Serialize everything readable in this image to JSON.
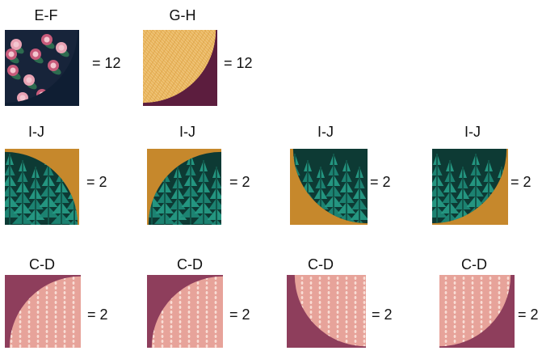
{
  "swatches": {
    "navy_floral": "#0f1e33",
    "rose": "#c75a7a",
    "green_leaf": "#2d6b4f",
    "gold": "#e8b45a",
    "plum": "#5c1d3e",
    "mustard": "#c6882c",
    "forest_dark": "#0d3a34",
    "teal_tree": "#1e8b78",
    "mauve": "#8e3e5c",
    "pink": "#e7a39a",
    "dots": "#fbe3dc"
  },
  "rows": [
    {
      "name": "row-1",
      "blocks": [
        {
          "label": "E-F",
          "count": "= 12",
          "fabric": "floral",
          "corner": "tl"
        },
        {
          "label": "G-H",
          "count": "= 12",
          "fabric": "gold",
          "corner": "tl"
        }
      ]
    },
    {
      "name": "row-2",
      "blocks": [
        {
          "label": "I-J",
          "count": "= 2",
          "fabric": "trees",
          "corner": "bl"
        },
        {
          "label": "I-J",
          "count": "= 2",
          "fabric": "trees",
          "corner": "br"
        },
        {
          "label": "I-J",
          "count": "= 2",
          "fabric": "trees",
          "corner": "tr"
        },
        {
          "label": "I-J",
          "count": "= 2",
          "fabric": "trees",
          "corner": "tl"
        }
      ]
    },
    {
      "name": "row-3",
      "blocks": [
        {
          "label": "C-D",
          "count": "= 2",
          "fabric": "dots",
          "corner": "br"
        },
        {
          "label": "C-D",
          "count": "= 2",
          "fabric": "dots",
          "corner": "br"
        },
        {
          "label": "C-D",
          "count": "= 2",
          "fabric": "dots",
          "corner": "tr"
        },
        {
          "label": "C-D",
          "count": "= 2",
          "fabric": "dots",
          "corner": "tl"
        }
      ]
    }
  ]
}
